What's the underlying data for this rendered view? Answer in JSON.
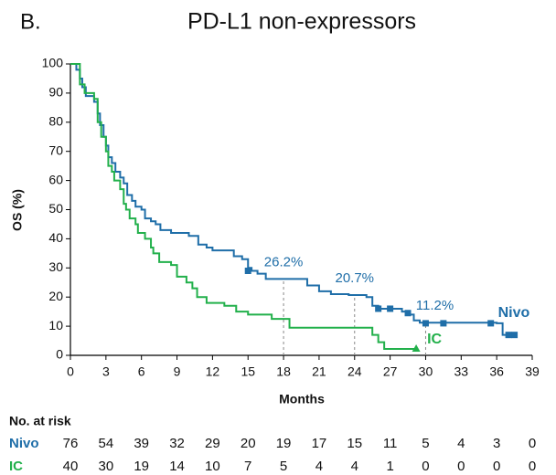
{
  "chart_data": {
    "type": "step",
    "panel": "B.",
    "title": "PD-L1 non-expressors",
    "xlabel": "Months",
    "ylabel": "OS (%)",
    "xlim": [
      0,
      39
    ],
    "xticks": [
      0,
      3,
      6,
      9,
      12,
      15,
      18,
      21,
      24,
      27,
      30,
      33,
      36,
      39
    ],
    "ylim": [
      0,
      100
    ],
    "yticks": [
      0,
      10,
      20,
      30,
      40,
      50,
      60,
      70,
      80,
      90,
      100
    ],
    "series": [
      {
        "name": "Nivo",
        "color": "#1f6ea8",
        "marker": "square",
        "x": [
          0,
          0.5,
          0.8,
          1,
          1.3,
          2,
          2.3,
          2.5,
          2.8,
          3,
          3.2,
          3.5,
          3.8,
          4.2,
          4.5,
          4.8,
          5.2,
          5.5,
          6,
          6.3,
          6.8,
          7.2,
          7.6,
          8.5,
          10,
          10.8,
          11.5,
          12,
          13.8,
          14.5,
          15,
          15.3,
          15.8,
          16.5,
          20,
          21,
          22,
          23.5,
          25,
          25.5,
          26,
          28,
          28.5,
          29,
          29.5,
          36,
          36.5,
          37.5
        ],
        "values": [
          100,
          98,
          95,
          92,
          89,
          87,
          83,
          79,
          75,
          72,
          68,
          66,
          63,
          61,
          59,
          55,
          53,
          51,
          50,
          47,
          46,
          45,
          43,
          42,
          41,
          38,
          37,
          36,
          34,
          33,
          30,
          29,
          28,
          26.2,
          24,
          22,
          21,
          20.7,
          20,
          17,
          16,
          15,
          14,
          12,
          11.2,
          11,
          7,
          7
        ],
        "censored_x": [
          15,
          26,
          27,
          28.5,
          30,
          31.5,
          35.5,
          37,
          37.5
        ],
        "censored_y": [
          29,
          16,
          16,
          14.5,
          11,
          11,
          11,
          7,
          7
        ]
      },
      {
        "name": "IC",
        "color": "#22b04b",
        "marker": "triangle",
        "x": [
          0,
          0.8,
          1.2,
          2,
          2.3,
          2.6,
          3,
          3.2,
          3.5,
          3.7,
          4.2,
          4.5,
          4.7,
          5,
          5.5,
          5.7,
          6.3,
          6.8,
          7,
          7.5,
          8.5,
          9,
          9.8,
          10.3,
          10.7,
          11.5,
          13,
          14,
          15,
          17,
          18.5,
          25,
          25.5,
          26,
          26.5,
          29.2
        ],
        "values": [
          100,
          93,
          90,
          88,
          80,
          75,
          70,
          65,
          63,
          60,
          57,
          52,
          50,
          47,
          45,
          42,
          40,
          37,
          35,
          32,
          31,
          27,
          25,
          23,
          20,
          18,
          17,
          15,
          14,
          12.5,
          9.5,
          9.5,
          7,
          4.5,
          2.2,
          2.2
        ],
        "censored_x": [
          29.2
        ],
        "censored_y": [
          2.2
        ]
      }
    ],
    "annotations": [
      {
        "x": 18,
        "y": 26.2,
        "label": "26.2%"
      },
      {
        "x": 24,
        "y": 20.7,
        "label": "20.7%"
      },
      {
        "x": 30,
        "y": 11.2,
        "label": "11.2%"
      }
    ],
    "risk_table": {
      "title": "No. at risk",
      "rows": [
        {
          "name": "Nivo",
          "values": [
            76,
            54,
            39,
            32,
            29,
            20,
            19,
            17,
            15,
            11,
            5,
            4,
            3,
            0
          ]
        },
        {
          "name": "IC",
          "values": [
            40,
            30,
            19,
            14,
            10,
            7,
            5,
            4,
            4,
            1,
            0,
            0,
            0,
            0
          ]
        }
      ]
    }
  }
}
